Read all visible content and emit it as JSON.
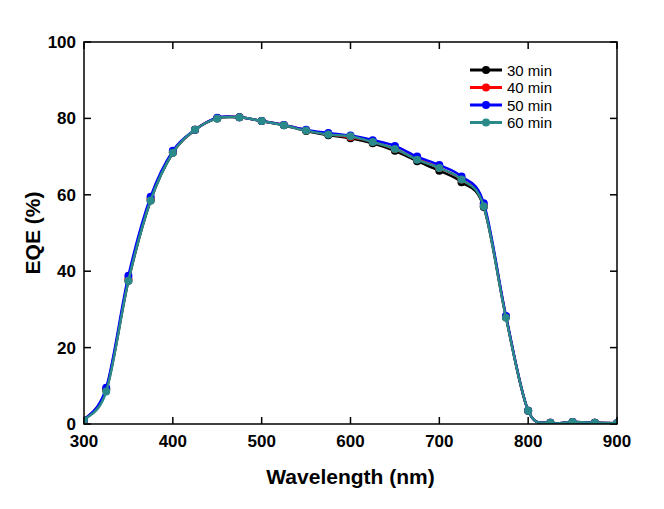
{
  "chart_data": {
    "type": "line",
    "x_label": "Wavelength (nm)",
    "y_label": "EQE (%)",
    "x": [
      300,
      325,
      350,
      375,
      400,
      425,
      450,
      475,
      500,
      525,
      550,
      575,
      600,
      625,
      650,
      675,
      700,
      725,
      750,
      775,
      800,
      825,
      850,
      875,
      900
    ],
    "series": [
      {
        "name": "30 min",
        "color": "#000000",
        "marker": "circle",
        "values": [
          1,
          9,
          37.5,
          58.5,
          71,
          77,
          80,
          80.3,
          79.3,
          78.2,
          76.7,
          75.6,
          74.8,
          73.5,
          71.5,
          68.8,
          66.3,
          63.3,
          56.8,
          28,
          3.5,
          0.3,
          0.5,
          0.3,
          0.2
        ]
      },
      {
        "name": "40 min",
        "color": "#ff0000",
        "marker": "circle",
        "values": [
          1,
          9,
          38,
          59,
          71.2,
          77,
          80.1,
          80.3,
          79.3,
          78.3,
          76.9,
          75.9,
          75.1,
          73.9,
          72,
          69.4,
          67,
          64,
          57.3,
          28.1,
          3.5,
          0.3,
          0.5,
          0.3,
          0.2
        ]
      },
      {
        "name": "50 min",
        "color": "#0000ff",
        "marker": "circle",
        "values": [
          1,
          9.5,
          38.8,
          59.5,
          71.5,
          77,
          80.2,
          80.3,
          79.3,
          78.3,
          77,
          76.2,
          75.5,
          74.3,
          72.8,
          70,
          67.8,
          64.8,
          57.8,
          28.3,
          3.5,
          0.3,
          0.5,
          0.3,
          0.2
        ]
      },
      {
        "name": "60 min",
        "color": "#2a8a8a",
        "marker": "circle",
        "values": [
          1,
          8.5,
          37.5,
          58.5,
          71,
          77,
          80,
          80.3,
          79.3,
          78.2,
          76.8,
          75.8,
          75.3,
          73.8,
          72,
          69.2,
          67,
          64,
          57,
          27.8,
          3.5,
          0.3,
          0.5,
          0.3,
          0.2
        ]
      }
    ],
    "xlim": [
      300,
      900
    ],
    "xticks": [
      300,
      400,
      500,
      600,
      700,
      800,
      900
    ],
    "ylim": [
      0,
      100
    ],
    "yticks": [
      0,
      20,
      40,
      60,
      80,
      100
    ],
    "grid": false,
    "legend": "top-right"
  }
}
